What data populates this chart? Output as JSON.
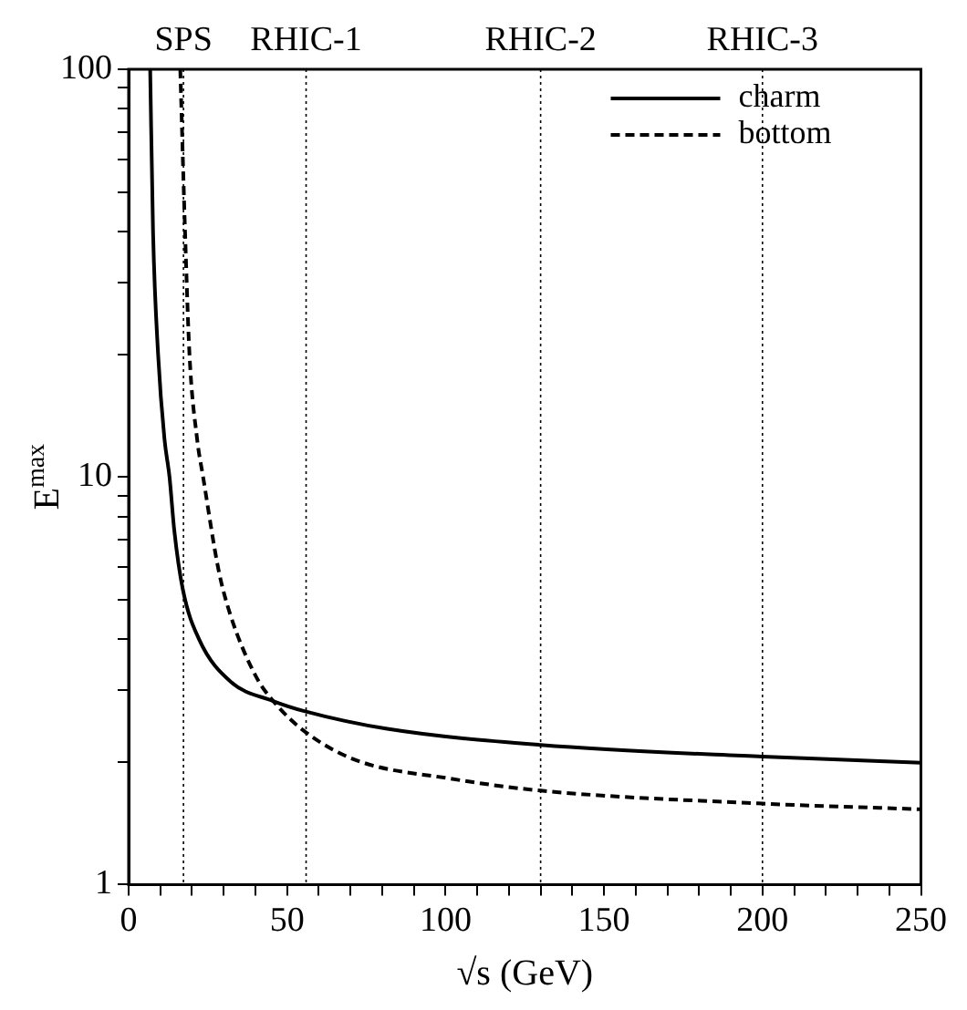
{
  "chart_data": {
    "type": "line",
    "xlabel": "√s (GeV)",
    "ylabel": "E$^{max}$",
    "xlim": [
      0,
      250
    ],
    "xticks": [
      0,
      {
        "value": 10,
        "label": null
      },
      {
        "value": 20,
        "label": null
      },
      {
        "value": 30,
        "label": null
      },
      {
        "value": 40,
        "label": null
      },
      50,
      {
        "value": 60,
        "label": null
      },
      {
        "value": 70,
        "label": null
      },
      {
        "value": 80,
        "label": null
      },
      {
        "value": 90,
        "label": null
      },
      100,
      {
        "value": 110,
        "label": null
      },
      {
        "value": 120,
        "label": null
      },
      {
        "value": 130,
        "label": null
      },
      {
        "value": 140,
        "label": null
      },
      150,
      {
        "value": 160,
        "label": null
      },
      {
        "value": 170,
        "label": null
      },
      {
        "value": 180,
        "label": null
      },
      {
        "value": 190,
        "label": null
      },
      200,
      {
        "value": 210,
        "label": null
      },
      {
        "value": 220,
        "label": null
      },
      {
        "value": 230,
        "label": null
      },
      {
        "value": 240,
        "label": null
      },
      250
    ],
    "ylim": [
      1,
      100
    ],
    "yticks": [
      1,
      {
        "value": 2,
        "label": null
      },
      {
        "value": 3,
        "label": null
      },
      {
        "value": 4,
        "label": null
      },
      {
        "value": 5,
        "label": null
      },
      {
        "value": 6,
        "label": null
      },
      {
        "value": 7,
        "label": null
      },
      {
        "value": 8,
        "label": null
      },
      {
        "value": 9,
        "label": null
      },
      10,
      {
        "value": 20,
        "label": null
      },
      {
        "value": 30,
        "label": null
      },
      {
        "value": 40,
        "label": null
      },
      {
        "value": 50,
        "label": null
      },
      {
        "value": 60,
        "label": null
      },
      {
        "value": 70,
        "label": null
      },
      {
        "value": 80,
        "label": null
      },
      {
        "value": 90,
        "label": null
      },
      100
    ],
    "log": "y",
    "grid": false,
    "legend": "top right",
    "marker": "none",
    "series": [
      {
        "name": "charm",
        "color": "#000000",
        "line_style": "solid",
        "x": [
          6.8,
          7.7,
          9.3,
          11.3,
          12.9,
          14.4,
          17.1,
          22.2,
          32.1,
          45.6,
          55.7,
          81.6,
          130,
          200,
          250
        ],
        "values": [
          100,
          40,
          20,
          12.4,
          10,
          7.4,
          5.3,
          4.0,
          3.15,
          2.82,
          2.66,
          2.41,
          2.2,
          2.06,
          1.99
        ]
      },
      {
        "name": "bottom",
        "color": "#000000",
        "line_style": "dashed",
        "x": [
          16.3,
          17.8,
          19.2,
          21.6,
          23.5,
          28.4,
          32.1,
          40,
          45.6,
          55.7,
          71.7,
          101.4,
          130,
          200,
          250
        ],
        "values": [
          100,
          40,
          20,
          12.4,
          10,
          5.9,
          4.59,
          3.26,
          2.82,
          2.37,
          2.02,
          1.82,
          1.7,
          1.58,
          1.53
        ]
      }
    ],
    "ref_lines": [
      {
        "axis": "x",
        "value": 17.3,
        "label": "SPS",
        "line_style": "dotted"
      },
      {
        "axis": "x",
        "value": 56,
        "label": "RHIC-1",
        "line_style": "dotted"
      },
      {
        "axis": "x",
        "value": 130,
        "label": "RHIC-2",
        "line_style": "dotted"
      },
      {
        "axis": "x",
        "value": 200,
        "label": "RHIC-3",
        "line_style": "dotted"
      }
    ]
  }
}
